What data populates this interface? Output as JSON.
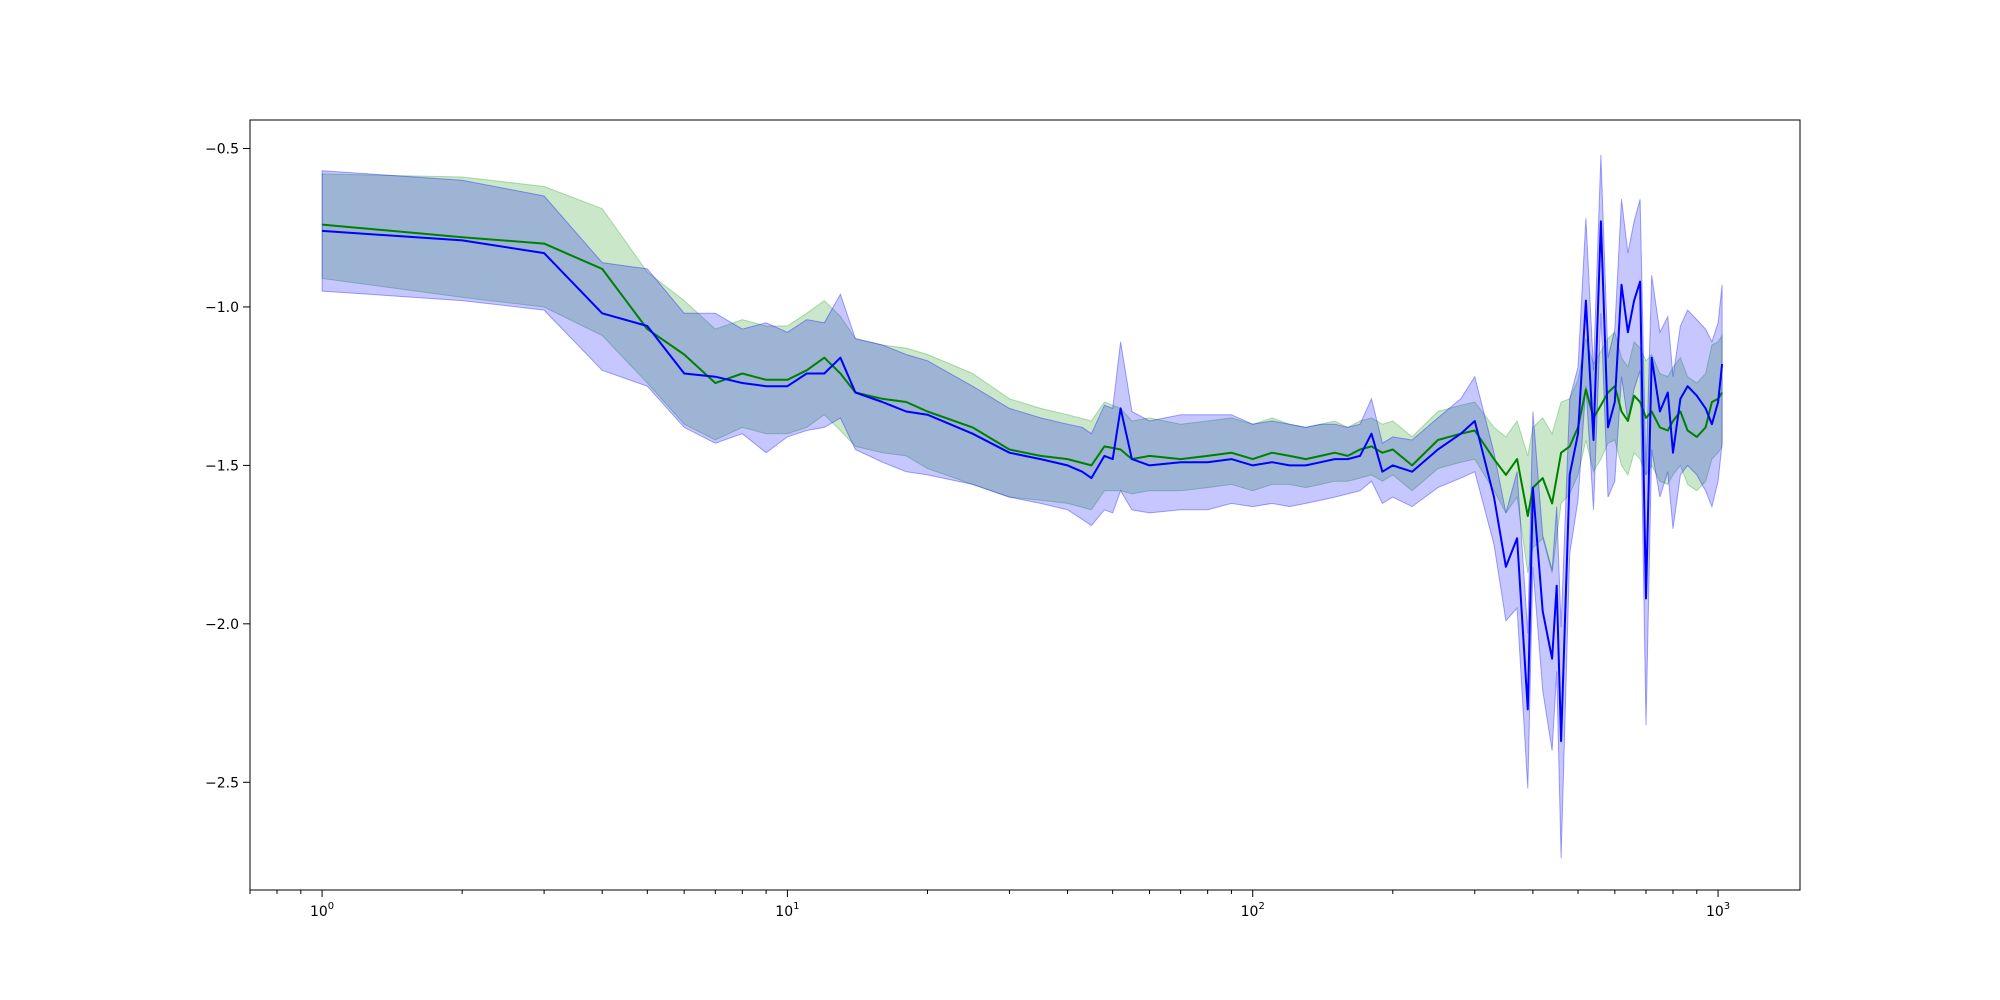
{
  "chart_data": {
    "type": "line",
    "title": "",
    "xlabel": "",
    "ylabel": "",
    "xscale": "log",
    "xlim": [
      0.7,
      1500
    ],
    "ylim": [
      -2.84,
      -0.41
    ],
    "grid": false,
    "legend": "none",
    "x_ticks": [
      {
        "value": 1,
        "base": "10",
        "exp": "0"
      },
      {
        "value": 10,
        "base": "10",
        "exp": "1"
      },
      {
        "value": 100,
        "base": "10",
        "exp": "2"
      },
      {
        "value": 1000,
        "base": "10",
        "exp": "3"
      }
    ],
    "y_ticks": [
      {
        "value": -0.5,
        "label": "−0.5"
      },
      {
        "value": -1.0,
        "label": "−1.0"
      },
      {
        "value": -1.5,
        "label": "−1.5"
      },
      {
        "value": -2.0,
        "label": "−2.0"
      },
      {
        "value": -2.5,
        "label": "−2.5"
      }
    ],
    "series": [
      {
        "color": "#008000",
        "band_color": "#2ca02c",
        "band_opacity": 0.25,
        "x": [
          1,
          2,
          3,
          4,
          5,
          6,
          7,
          8,
          9,
          10,
          11,
          12,
          13,
          14,
          16,
          18,
          20,
          25,
          30,
          35,
          40,
          45,
          48,
          52,
          55,
          60,
          70,
          80,
          90,
          100,
          110,
          120,
          130,
          140,
          150,
          160,
          170,
          180,
          190,
          200,
          220,
          250,
          280,
          300,
          330,
          350,
          370,
          390,
          400,
          420,
          440,
          460,
          480,
          500,
          520,
          540,
          560,
          580,
          600,
          620,
          640,
          660,
          680,
          700,
          720,
          750,
          780,
          800,
          830,
          860,
          900,
          940,
          970,
          1000,
          1020
        ],
        "y": [
          -0.74,
          -0.78,
          -0.8,
          -0.88,
          -1.07,
          -1.15,
          -1.24,
          -1.21,
          -1.23,
          -1.23,
          -1.2,
          -1.16,
          -1.21,
          -1.27,
          -1.29,
          -1.3,
          -1.33,
          -1.38,
          -1.45,
          -1.47,
          -1.48,
          -1.5,
          -1.44,
          -1.45,
          -1.48,
          -1.47,
          -1.48,
          -1.47,
          -1.46,
          -1.48,
          -1.46,
          -1.47,
          -1.48,
          -1.47,
          -1.46,
          -1.47,
          -1.45,
          -1.44,
          -1.46,
          -1.45,
          -1.5,
          -1.42,
          -1.4,
          -1.39,
          -1.48,
          -1.53,
          -1.48,
          -1.66,
          -1.57,
          -1.54,
          -1.62,
          -1.46,
          -1.44,
          -1.38,
          -1.26,
          -1.35,
          -1.31,
          -1.27,
          -1.25,
          -1.33,
          -1.36,
          -1.28,
          -1.3,
          -1.35,
          -1.33,
          -1.38,
          -1.39,
          -1.36,
          -1.33,
          -1.39,
          -1.41,
          -1.38,
          -1.3,
          -1.29,
          -1.27
        ],
        "lower": [
          -0.91,
          -0.97,
          -1.0,
          -1.09,
          -1.24,
          -1.37,
          -1.42,
          -1.38,
          -1.4,
          -1.4,
          -1.38,
          -1.34,
          -1.39,
          -1.44,
          -1.46,
          -1.47,
          -1.51,
          -1.56,
          -1.6,
          -1.61,
          -1.62,
          -1.64,
          -1.58,
          -1.58,
          -1.59,
          -1.58,
          -1.58,
          -1.57,
          -1.56,
          -1.58,
          -1.56,
          -1.56,
          -1.57,
          -1.56,
          -1.55,
          -1.55,
          -1.54,
          -1.53,
          -1.55,
          -1.53,
          -1.58,
          -1.51,
          -1.49,
          -1.48,
          -1.58,
          -1.65,
          -1.6,
          -1.84,
          -1.76,
          -1.73,
          -1.84,
          -1.62,
          -1.59,
          -1.53,
          -1.42,
          -1.52,
          -1.48,
          -1.43,
          -1.42,
          -1.5,
          -1.53,
          -1.46,
          -1.48,
          -1.53,
          -1.5,
          -1.55,
          -1.56,
          -1.53,
          -1.5,
          -1.56,
          -1.58,
          -1.55,
          -1.48,
          -1.46,
          -1.44
        ],
        "upper": [
          -0.58,
          -0.59,
          -0.62,
          -0.69,
          -0.89,
          -0.98,
          -1.07,
          -1.04,
          -1.06,
          -1.06,
          -1.02,
          -0.98,
          -1.03,
          -1.1,
          -1.12,
          -1.13,
          -1.15,
          -1.21,
          -1.29,
          -1.32,
          -1.34,
          -1.36,
          -1.3,
          -1.32,
          -1.36,
          -1.35,
          -1.37,
          -1.36,
          -1.35,
          -1.37,
          -1.35,
          -1.37,
          -1.38,
          -1.37,
          -1.36,
          -1.38,
          -1.36,
          -1.35,
          -1.37,
          -1.36,
          -1.41,
          -1.33,
          -1.31,
          -1.3,
          -1.38,
          -1.41,
          -1.36,
          -1.47,
          -1.38,
          -1.35,
          -1.4,
          -1.3,
          -1.29,
          -1.23,
          -1.1,
          -1.18,
          -1.14,
          -1.1,
          -1.08,
          -1.16,
          -1.19,
          -1.11,
          -1.13,
          -1.17,
          -1.15,
          -1.21,
          -1.22,
          -1.19,
          -1.16,
          -1.22,
          -1.24,
          -1.21,
          -1.12,
          -1.11,
          -1.09
        ]
      },
      {
        "color": "#0000ff",
        "band_color": "#0000ff",
        "band_opacity": 0.22,
        "x": [
          1,
          2,
          3,
          4,
          5,
          6,
          7,
          8,
          9,
          10,
          11,
          12,
          13,
          14,
          16,
          18,
          20,
          25,
          30,
          35,
          40,
          43,
          45,
          48,
          50,
          52,
          55,
          60,
          70,
          80,
          90,
          100,
          110,
          120,
          130,
          140,
          150,
          160,
          170,
          180,
          190,
          200,
          220,
          250,
          280,
          300,
          330,
          350,
          370,
          390,
          400,
          420,
          440,
          450,
          460,
          480,
          500,
          520,
          540,
          560,
          580,
          600,
          620,
          640,
          660,
          680,
          700,
          720,
          750,
          780,
          800,
          830,
          860,
          900,
          940,
          970,
          1000,
          1020
        ],
        "y": [
          -0.76,
          -0.79,
          -0.83,
          -1.02,
          -1.06,
          -1.21,
          -1.22,
          -1.24,
          -1.25,
          -1.25,
          -1.21,
          -1.21,
          -1.16,
          -1.27,
          -1.3,
          -1.33,
          -1.34,
          -1.4,
          -1.46,
          -1.48,
          -1.5,
          -1.52,
          -1.54,
          -1.47,
          -1.48,
          -1.32,
          -1.48,
          -1.5,
          -1.49,
          -1.49,
          -1.48,
          -1.5,
          -1.49,
          -1.5,
          -1.5,
          -1.49,
          -1.48,
          -1.48,
          -1.47,
          -1.4,
          -1.52,
          -1.5,
          -1.52,
          -1.45,
          -1.4,
          -1.36,
          -1.6,
          -1.82,
          -1.73,
          -2.27,
          -1.57,
          -1.96,
          -2.11,
          -1.88,
          -2.37,
          -1.53,
          -1.4,
          -0.98,
          -1.42,
          -0.73,
          -1.38,
          -1.3,
          -0.93,
          -1.08,
          -0.98,
          -0.92,
          -1.92,
          -1.16,
          -1.33,
          -1.27,
          -1.46,
          -1.29,
          -1.25,
          -1.28,
          -1.32,
          -1.37,
          -1.3,
          -1.18
        ],
        "lower": [
          -0.95,
          -0.98,
          -1.01,
          -1.2,
          -1.25,
          -1.38,
          -1.43,
          -1.4,
          -1.46,
          -1.41,
          -1.39,
          -1.38,
          -1.35,
          -1.45,
          -1.49,
          -1.52,
          -1.53,
          -1.56,
          -1.6,
          -1.62,
          -1.64,
          -1.67,
          -1.69,
          -1.64,
          -1.65,
          -1.58,
          -1.64,
          -1.65,
          -1.64,
          -1.64,
          -1.62,
          -1.63,
          -1.62,
          -1.63,
          -1.62,
          -1.61,
          -1.6,
          -1.59,
          -1.58,
          -1.55,
          -1.62,
          -1.6,
          -1.63,
          -1.57,
          -1.54,
          -1.52,
          -1.75,
          -1.99,
          -1.95,
          -2.52,
          -1.82,
          -2.21,
          -2.4,
          -2.15,
          -2.74,
          -1.78,
          -1.61,
          -1.25,
          -1.64,
          -1.02,
          -1.6,
          -1.55,
          -1.22,
          -1.36,
          -1.26,
          -1.2,
          -2.32,
          -1.45,
          -1.6,
          -1.52,
          -1.7,
          -1.53,
          -1.5,
          -1.53,
          -1.58,
          -1.63,
          -1.55,
          -1.43
        ],
        "upper": [
          -0.57,
          -0.6,
          -0.65,
          -0.86,
          -0.88,
          -1.02,
          -1.02,
          -1.07,
          -1.05,
          -1.08,
          -1.04,
          -1.05,
          -0.96,
          -1.1,
          -1.12,
          -1.15,
          -1.17,
          -1.25,
          -1.32,
          -1.35,
          -1.37,
          -1.38,
          -1.4,
          -1.31,
          -1.32,
          -1.11,
          -1.33,
          -1.36,
          -1.34,
          -1.34,
          -1.34,
          -1.37,
          -1.36,
          -1.37,
          -1.38,
          -1.37,
          -1.37,
          -1.38,
          -1.37,
          -1.29,
          -1.43,
          -1.41,
          -1.42,
          -1.35,
          -1.29,
          -1.22,
          -1.46,
          -1.65,
          -1.52,
          -2.03,
          -1.33,
          -1.72,
          -1.83,
          -1.63,
          -2.01,
          -1.29,
          -1.19,
          -0.72,
          -1.2,
          -0.52,
          -1.16,
          -1.07,
          -0.66,
          -0.83,
          -0.73,
          -0.66,
          -1.53,
          -0.9,
          -1.08,
          -1.03,
          -1.22,
          -1.06,
          -1.01,
          -1.04,
          -1.07,
          -1.11,
          -1.05,
          -0.93
        ]
      }
    ]
  }
}
